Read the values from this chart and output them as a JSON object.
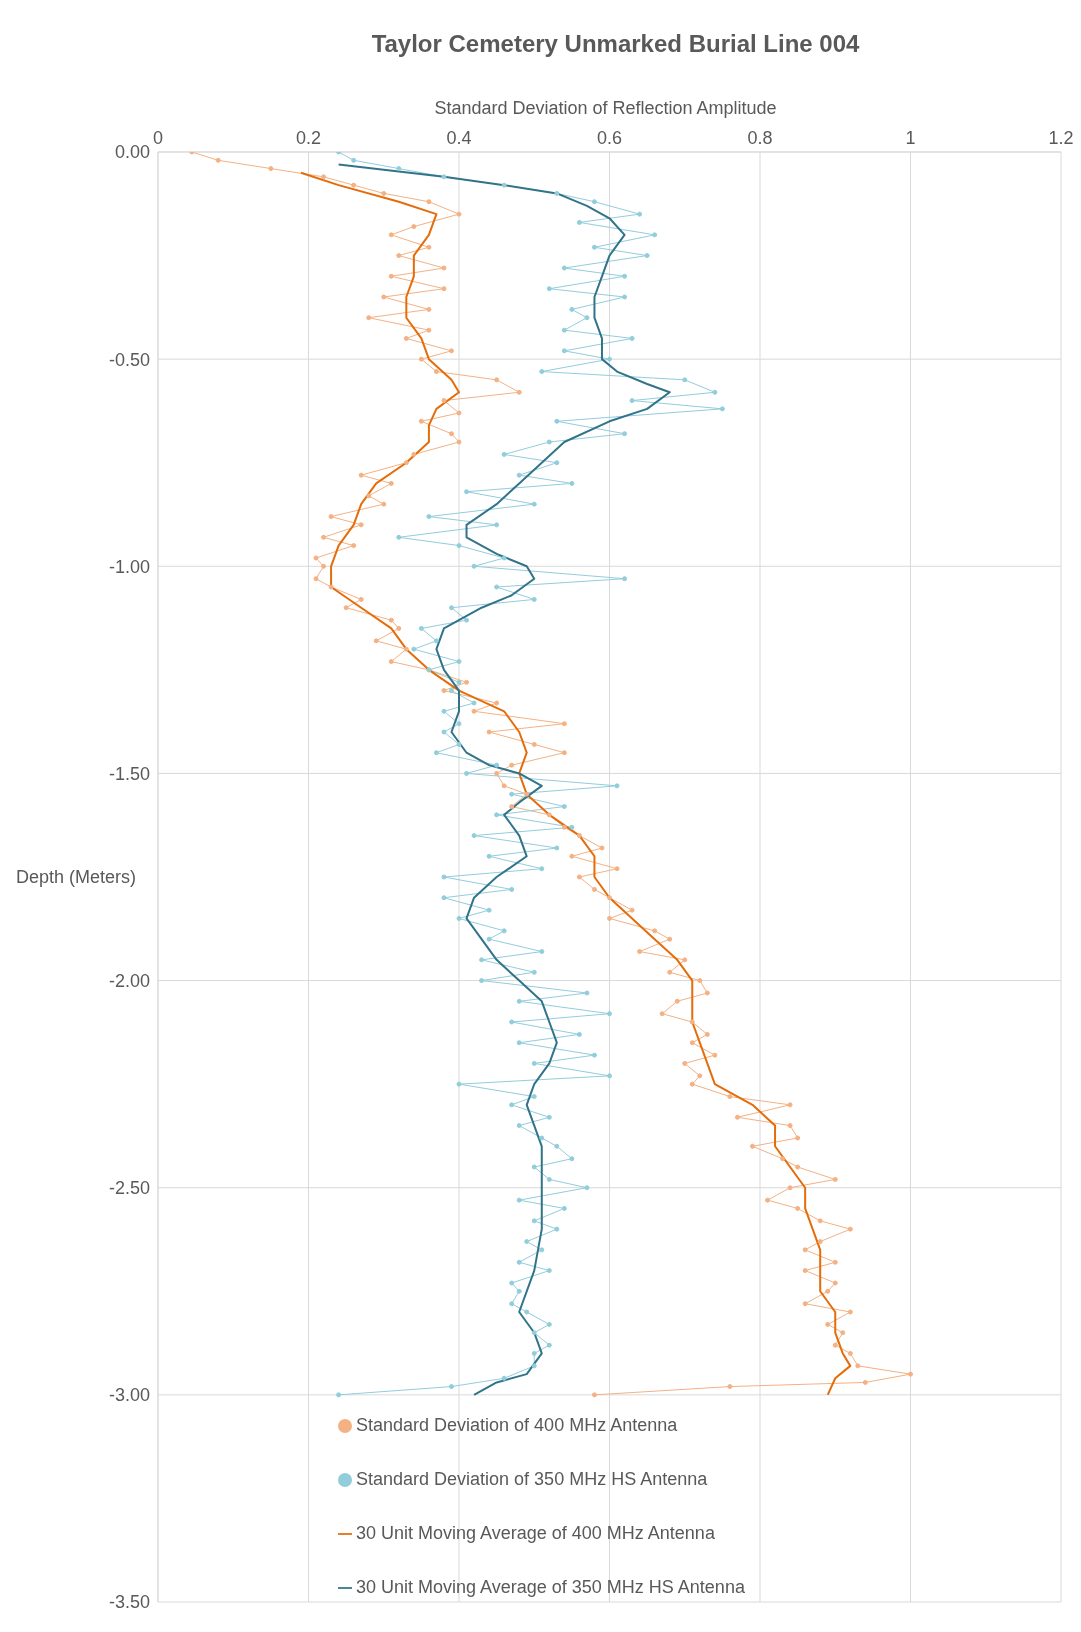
{
  "chart_data": {
    "type": "line",
    "title": "Taylor Cemetery Unmarked Burial Line 004",
    "xlabel": "Standard Deviation of Reflection Amplitude",
    "ylabel": "Depth (Meters)",
    "xlim": [
      0,
      1.2
    ],
    "xticks": [
      0,
      0.2,
      0.4,
      0.6,
      0.8,
      1,
      1.2
    ],
    "ylim": [
      -3.5,
      0
    ],
    "yticks": [
      {
        "value": 0,
        "label": "0.00"
      },
      {
        "value": -0.5,
        "label": "-0.50"
      },
      {
        "value": -1,
        "label": "-1.00"
      },
      {
        "value": -1.5,
        "label": "-1.50"
      },
      {
        "value": -2,
        "label": "-2.00"
      },
      {
        "value": -2.5,
        "label": "-2.50"
      },
      {
        "value": -3,
        "label": "-3.00"
      },
      {
        "value": -3.5,
        "label": "-3.50"
      }
    ],
    "grid": true,
    "legend": "bottom",
    "series": [
      {
        "name": "Standard Deviation of 400 MHz Antenna",
        "marker": "circle",
        "color": "#f4b183",
        "x": [
          0.045,
          0.08,
          0.15,
          0.22,
          0.26,
          0.3,
          0.36,
          0.4,
          0.34,
          0.31,
          0.36,
          0.32,
          0.38,
          0.31,
          0.38,
          0.3,
          0.36,
          0.28,
          0.36,
          0.33,
          0.39,
          0.35,
          0.37,
          0.45,
          0.48,
          0.38,
          0.4,
          0.35,
          0.39,
          0.4,
          0.34,
          0.33,
          0.27,
          0.31,
          0.28,
          0.3,
          0.23,
          0.27,
          0.22,
          0.26,
          0.21,
          0.22,
          0.21,
          0.23,
          0.27,
          0.25,
          0.31,
          0.32,
          0.29,
          0.33,
          0.31,
          0.36,
          0.41,
          0.38,
          0.45,
          0.42,
          0.54,
          0.44,
          0.5,
          0.54,
          0.47,
          0.45,
          0.46,
          0.49,
          0.47,
          0.52,
          0.54,
          0.56,
          0.59,
          0.55,
          0.61,
          0.56,
          0.58,
          0.6,
          0.63,
          0.6,
          0.66,
          0.68,
          0.64,
          0.7,
          0.68,
          0.72,
          0.73,
          0.69,
          0.67,
          0.71,
          0.73,
          0.71,
          0.74,
          0.7,
          0.72,
          0.71,
          0.76,
          0.84,
          0.77,
          0.84,
          0.85,
          0.79,
          0.83,
          0.85,
          0.9,
          0.84,
          0.81,
          0.85,
          0.88,
          0.92,
          0.88,
          0.86,
          0.9,
          0.86,
          0.9,
          0.89,
          0.86,
          0.92,
          0.89,
          0.91,
          0.9,
          0.92,
          0.93,
          1.0,
          0.94,
          0.76,
          0.58
        ],
        "values": [
          0,
          -0.02,
          -0.04,
          -0.06,
          -0.08,
          -0.1,
          -0.12,
          -0.15,
          -0.18,
          -0.2,
          -0.23,
          -0.25,
          -0.28,
          -0.3,
          -0.33,
          -0.35,
          -0.38,
          -0.4,
          -0.43,
          -0.45,
          -0.48,
          -0.5,
          -0.53,
          -0.55,
          -0.58,
          -0.6,
          -0.63,
          -0.65,
          -0.68,
          -0.7,
          -0.73,
          -0.75,
          -0.78,
          -0.8,
          -0.83,
          -0.85,
          -0.88,
          -0.9,
          -0.93,
          -0.95,
          -0.98,
          -1,
          -1.03,
          -1.05,
          -1.08,
          -1.1,
          -1.13,
          -1.15,
          -1.18,
          -1.2,
          -1.23,
          -1.25,
          -1.28,
          -1.3,
          -1.33,
          -1.35,
          -1.38,
          -1.4,
          -1.43,
          -1.45,
          -1.48,
          -1.5,
          -1.53,
          -1.55,
          -1.58,
          -1.6,
          -1.63,
          -1.65,
          -1.68,
          -1.7,
          -1.73,
          -1.75,
          -1.78,
          -1.8,
          -1.83,
          -1.85,
          -1.88,
          -1.9,
          -1.93,
          -1.95,
          -1.98,
          -2,
          -2.03,
          -2.05,
          -2.08,
          -2.1,
          -2.13,
          -2.15,
          -2.18,
          -2.2,
          -2.23,
          -2.25,
          -2.28,
          -2.3,
          -2.33,
          -2.35,
          -2.38,
          -2.4,
          -2.43,
          -2.45,
          -2.48,
          -2.5,
          -2.53,
          -2.55,
          -2.58,
          -2.6,
          -2.63,
          -2.65,
          -2.68,
          -2.7,
          -2.73,
          -2.75,
          -2.78,
          -2.8,
          -2.83,
          -2.85,
          -2.88,
          -2.9,
          -2.93,
          -2.95,
          -2.97,
          -2.98,
          -3
        ]
      },
      {
        "name": "Standard Deviation of 350 MHz HS Antenna",
        "marker": "circle",
        "color": "#92cddc",
        "x": [
          0.24,
          0.26,
          0.32,
          0.38,
          0.46,
          0.53,
          0.58,
          0.64,
          0.56,
          0.66,
          0.58,
          0.65,
          0.54,
          0.62,
          0.52,
          0.62,
          0.55,
          0.57,
          0.54,
          0.63,
          0.54,
          0.6,
          0.51,
          0.7,
          0.74,
          0.63,
          0.75,
          0.53,
          0.62,
          0.52,
          0.46,
          0.53,
          0.48,
          0.55,
          0.41,
          0.5,
          0.36,
          0.45,
          0.32,
          0.4,
          0.46,
          0.42,
          0.62,
          0.45,
          0.5,
          0.39,
          0.41,
          0.35,
          0.37,
          0.34,
          0.4,
          0.36,
          0.4,
          0.39,
          0.42,
          0.38,
          0.4,
          0.38,
          0.4,
          0.37,
          0.45,
          0.41,
          0.61,
          0.47,
          0.54,
          0.45,
          0.55,
          0.42,
          0.53,
          0.44,
          0.51,
          0.38,
          0.47,
          0.38,
          0.44,
          0.4,
          0.46,
          0.44,
          0.51,
          0.43,
          0.5,
          0.43,
          0.57,
          0.48,
          0.6,
          0.47,
          0.56,
          0.48,
          0.58,
          0.5,
          0.6,
          0.4,
          0.5,
          0.47,
          0.52,
          0.48,
          0.51,
          0.53,
          0.55,
          0.5,
          0.52,
          0.57,
          0.48,
          0.54,
          0.5,
          0.53,
          0.49,
          0.51,
          0.48,
          0.52,
          0.47,
          0.48,
          0.47,
          0.49,
          0.52,
          0.5,
          0.52,
          0.5,
          0.5,
          0.46,
          0.39,
          0.24
        ],
        "values": [
          0,
          -0.02,
          -0.04,
          -0.06,
          -0.08,
          -0.1,
          -0.12,
          -0.15,
          -0.17,
          -0.2,
          -0.23,
          -0.25,
          -0.28,
          -0.3,
          -0.33,
          -0.35,
          -0.38,
          -0.4,
          -0.43,
          -0.45,
          -0.48,
          -0.5,
          -0.53,
          -0.55,
          -0.58,
          -0.6,
          -0.62,
          -0.65,
          -0.68,
          -0.7,
          -0.73,
          -0.75,
          -0.78,
          -0.8,
          -0.82,
          -0.85,
          -0.88,
          -0.9,
          -0.93,
          -0.95,
          -0.98,
          -1,
          -1.03,
          -1.05,
          -1.08,
          -1.1,
          -1.13,
          -1.15,
          -1.18,
          -1.2,
          -1.23,
          -1.25,
          -1.28,
          -1.3,
          -1.33,
          -1.35,
          -1.38,
          -1.4,
          -1.43,
          -1.45,
          -1.48,
          -1.5,
          -1.53,
          -1.55,
          -1.58,
          -1.6,
          -1.63,
          -1.65,
          -1.68,
          -1.7,
          -1.73,
          -1.75,
          -1.78,
          -1.8,
          -1.83,
          -1.85,
          -1.88,
          -1.9,
          -1.93,
          -1.95,
          -1.98,
          -2,
          -2.03,
          -2.05,
          -2.08,
          -2.1,
          -2.13,
          -2.15,
          -2.18,
          -2.2,
          -2.23,
          -2.25,
          -2.28,
          -2.3,
          -2.33,
          -2.35,
          -2.38,
          -2.4,
          -2.43,
          -2.45,
          -2.48,
          -2.5,
          -2.53,
          -2.55,
          -2.58,
          -2.6,
          -2.63,
          -2.65,
          -2.68,
          -2.7,
          -2.73,
          -2.75,
          -2.78,
          -2.8,
          -2.83,
          -2.85,
          -2.88,
          -2.9,
          -2.93,
          -2.96,
          -2.98,
          -3
        ]
      },
      {
        "name": "30 Unit Moving Average of 400 MHz Antenna",
        "marker": "none",
        "color": "#e46c0a",
        "x": [
          0.19,
          0.24,
          0.32,
          0.37,
          0.36,
          0.34,
          0.34,
          0.33,
          0.33,
          0.35,
          0.36,
          0.39,
          0.4,
          0.37,
          0.36,
          0.36,
          0.33,
          0.29,
          0.27,
          0.26,
          0.24,
          0.23,
          0.23,
          0.27,
          0.31,
          0.33,
          0.36,
          0.4,
          0.46,
          0.48,
          0.49,
          0.48,
          0.49,
          0.52,
          0.56,
          0.58,
          0.58,
          0.6,
          0.63,
          0.66,
          0.69,
          0.71,
          0.71,
          0.71,
          0.72,
          0.73,
          0.74,
          0.79,
          0.82,
          0.82,
          0.84,
          0.86,
          0.86,
          0.87,
          0.88,
          0.88,
          0.88,
          0.9,
          0.9,
          0.91,
          0.92,
          0.9,
          0.89
        ],
        "values": [
          -0.05,
          -0.08,
          -0.12,
          -0.15,
          -0.2,
          -0.25,
          -0.3,
          -0.35,
          -0.4,
          -0.45,
          -0.5,
          -0.55,
          -0.58,
          -0.62,
          -0.66,
          -0.7,
          -0.75,
          -0.8,
          -0.85,
          -0.9,
          -0.95,
          -1,
          -1.05,
          -1.1,
          -1.15,
          -1.2,
          -1.25,
          -1.3,
          -1.35,
          -1.4,
          -1.45,
          -1.5,
          -1.55,
          -1.6,
          -1.65,
          -1.7,
          -1.75,
          -1.8,
          -1.85,
          -1.9,
          -1.95,
          -2,
          -2.05,
          -2.1,
          -2.15,
          -2.2,
          -2.25,
          -2.3,
          -2.35,
          -2.4,
          -2.45,
          -2.5,
          -2.55,
          -2.6,
          -2.65,
          -2.7,
          -2.75,
          -2.8,
          -2.85,
          -2.9,
          -2.93,
          -2.96,
          -3
        ]
      },
      {
        "name": "30 Unit Moving Average of 350 MHz HS Antenna",
        "marker": "none",
        "color": "#31748a",
        "x": [
          0.24,
          0.38,
          0.46,
          0.53,
          0.57,
          0.6,
          0.62,
          0.6,
          0.59,
          0.58,
          0.58,
          0.59,
          0.59,
          0.61,
          0.65,
          0.68,
          0.65,
          0.6,
          0.54,
          0.51,
          0.48,
          0.45,
          0.41,
          0.41,
          0.45,
          0.49,
          0.5,
          0.47,
          0.43,
          0.38,
          0.37,
          0.38,
          0.4,
          0.4,
          0.39,
          0.41,
          0.44,
          0.48,
          0.51,
          0.48,
          0.46,
          0.48,
          0.49,
          0.45,
          0.42,
          0.41,
          0.43,
          0.45,
          0.48,
          0.51,
          0.52,
          0.53,
          0.52,
          0.5,
          0.49,
          0.5,
          0.51,
          0.51,
          0.51,
          0.5,
          0.48,
          0.5,
          0.51,
          0.49,
          0.45,
          0.42
        ],
        "values": [
          -0.03,
          -0.06,
          -0.08,
          -0.1,
          -0.13,
          -0.16,
          -0.2,
          -0.25,
          -0.3,
          -0.35,
          -0.4,
          -0.45,
          -0.5,
          -0.53,
          -0.56,
          -0.58,
          -0.62,
          -0.65,
          -0.7,
          -0.75,
          -0.8,
          -0.85,
          -0.9,
          -0.93,
          -0.97,
          -1,
          -1.03,
          -1.07,
          -1.1,
          -1.15,
          -1.2,
          -1.25,
          -1.3,
          -1.35,
          -1.4,
          -1.45,
          -1.48,
          -1.5,
          -1.53,
          -1.57,
          -1.6,
          -1.65,
          -1.7,
          -1.75,
          -1.8,
          -1.85,
          -1.9,
          -1.95,
          -2,
          -2.05,
          -2.1,
          -2.15,
          -2.2,
          -2.25,
          -2.3,
          -2.35,
          -2.4,
          -2.5,
          -2.6,
          -2.7,
          -2.8,
          -2.85,
          -2.9,
          -2.95,
          -2.97,
          -3
        ]
      }
    ]
  }
}
